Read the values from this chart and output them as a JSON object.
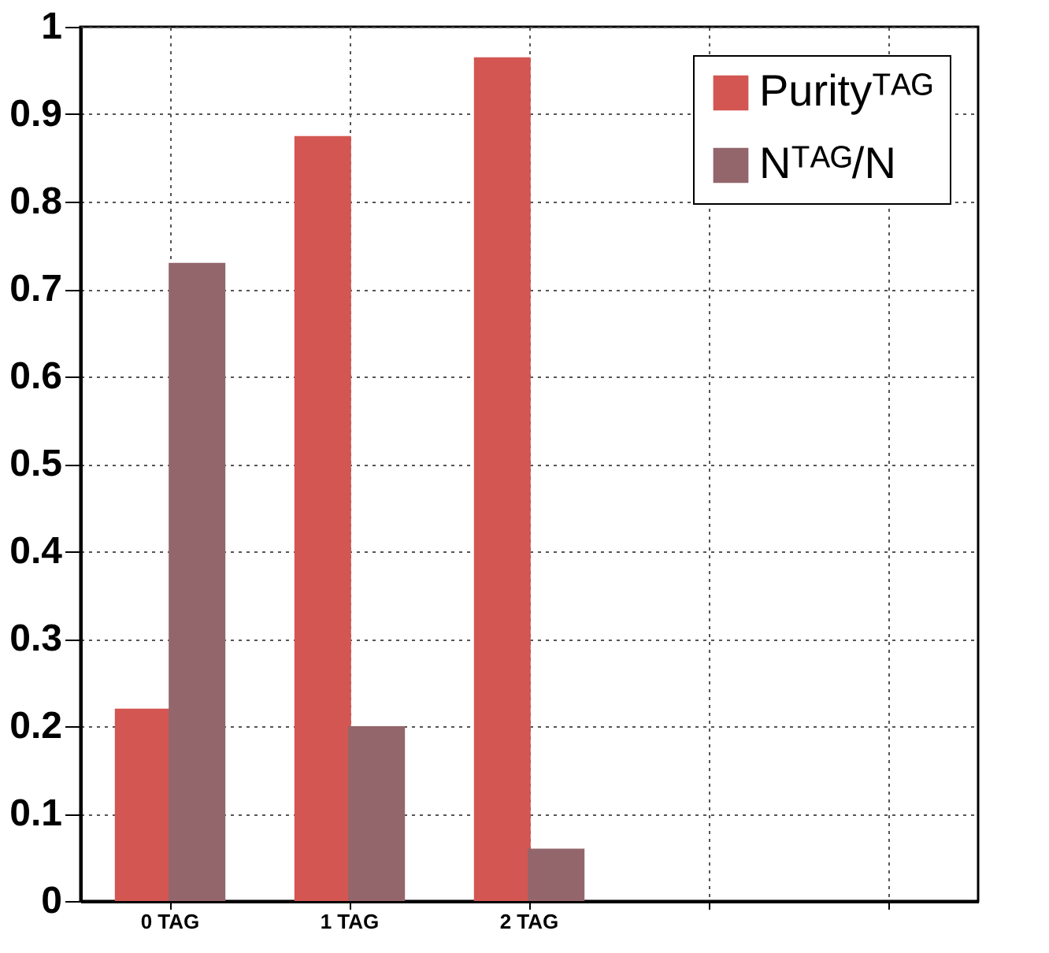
{
  "chart_data": {
    "type": "bar",
    "categories": [
      "0 TAG",
      "1 TAG",
      "2 TAG",
      null,
      null
    ],
    "series": [
      {
        "name": "Purityᵀᴬᴳ",
        "color": "#d35652",
        "values": [
          0.22,
          0.875,
          0.965,
          null,
          null
        ]
      },
      {
        "name": "Nᵀᴬᴳ/N",
        "color": "#93666c",
        "values": [
          0.73,
          0.2,
          0.06,
          null,
          null
        ]
      }
    ],
    "ylim": [
      0,
      1
    ],
    "yticks": [
      0,
      0.1,
      0.2,
      0.3,
      0.4,
      0.5,
      0.6,
      0.7,
      0.8,
      0.9,
      1
    ],
    "grid": true,
    "legend": "top right"
  }
}
